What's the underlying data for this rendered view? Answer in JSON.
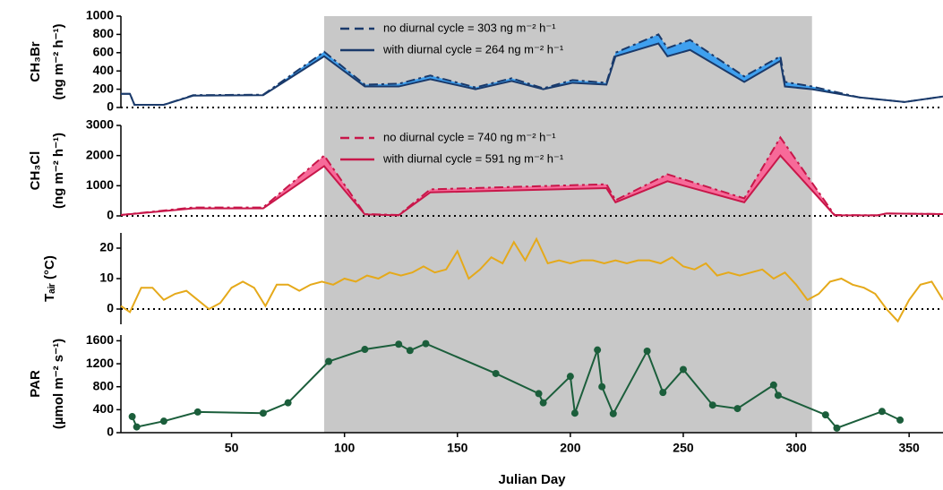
{
  "chart_data": [
    {
      "type": "line",
      "ylabel": [
        "CH₃Br",
        "(ng m⁻² h⁻¹)"
      ],
      "ylim": [
        0,
        1000
      ],
      "yticks": [
        0,
        200,
        400,
        600,
        800,
        1000
      ],
      "zero_line": true,
      "fill_between": true,
      "fill_color": "#3fa0ef",
      "legend": true,
      "x": [
        1,
        5,
        7,
        20,
        33,
        64,
        91,
        109,
        124,
        138,
        158,
        174,
        188,
        201,
        216,
        220,
        239,
        243,
        253,
        277,
        293,
        295,
        307,
        328,
        348,
        365
      ],
      "series": [
        {
          "name": "no diurnal cycle = 303 ng m⁻² h⁻¹",
          "color": "#1a3a6b",
          "dashed": true,
          "values": [
            150,
            150,
            30,
            30,
            135,
            140,
            610,
            250,
            260,
            350,
            220,
            320,
            210,
            300,
            270,
            600,
            800,
            650,
            740,
            340,
            560,
            280,
            230,
            110,
            60,
            120
          ]
        },
        {
          "name": "with diurnal cycle = 264 ng m⁻² h⁻¹",
          "color": "#1a3a6b",
          "dashed": false,
          "values": [
            150,
            150,
            30,
            30,
            130,
            135,
            560,
            230,
            230,
            310,
            200,
            290,
            200,
            270,
            250,
            560,
            700,
            560,
            630,
            280,
            510,
            230,
            200,
            110,
            60,
            120
          ]
        }
      ]
    },
    {
      "type": "line",
      "ylabel": [
        "CH₃Cl",
        "(ng m⁻² h⁻¹)"
      ],
      "ylim": [
        0,
        3000
      ],
      "yticks": [
        0,
        1000,
        2000,
        3000
      ],
      "zero_line": true,
      "fill_between": true,
      "fill_color": "#f76a99",
      "legend": true,
      "x": [
        1,
        33,
        64,
        91,
        109,
        124,
        138,
        216,
        220,
        243,
        277,
        293,
        317,
        336,
        340,
        365
      ],
      "series": [
        {
          "name": "no diurnal cycle = 740 ng m⁻² h⁻¹",
          "color": "#c8174a",
          "dashed": true,
          "values": [
            30,
            280,
            280,
            2000,
            60,
            30,
            880,
            1050,
            520,
            1380,
            580,
            2600,
            30,
            20,
            80,
            60
          ]
        },
        {
          "name": "with diurnal cycle = 591 ng m⁻² h⁻¹",
          "color": "#c8174a",
          "dashed": false,
          "values": [
            30,
            250,
            250,
            1650,
            50,
            20,
            780,
            920,
            450,
            1150,
            450,
            2000,
            20,
            20,
            80,
            60
          ]
        }
      ]
    },
    {
      "type": "line",
      "ylabel": [
        "Tₐᵢᵣ (°C)"
      ],
      "ylim": [
        -5,
        25
      ],
      "yticks": [
        0,
        10,
        20
      ],
      "zero_line": true,
      "x": [
        1,
        5,
        10,
        15,
        20,
        25,
        30,
        35,
        40,
        45,
        50,
        55,
        60,
        65,
        70,
        75,
        80,
        85,
        90,
        95,
        100,
        105,
        110,
        115,
        120,
        125,
        130,
        135,
        140,
        145,
        150,
        155,
        160,
        165,
        170,
        175,
        180,
        185,
        190,
        195,
        200,
        205,
        210,
        215,
        220,
        225,
        230,
        235,
        240,
        245,
        250,
        255,
        260,
        265,
        270,
        275,
        280,
        285,
        290,
        295,
        300,
        305,
        310,
        315,
        320,
        325,
        330,
        335,
        340,
        345,
        350,
        355,
        360,
        365
      ],
      "series": [
        {
          "color": "#e5a91a",
          "values": [
            1,
            -1,
            7,
            7,
            3,
            5,
            6,
            3,
            0,
            2,
            7,
            9,
            7,
            1,
            8,
            8,
            6,
            8,
            9,
            8,
            10,
            9,
            11,
            10,
            12,
            11,
            12,
            14,
            12,
            13,
            19,
            10,
            13,
            17,
            15,
            22,
            16,
            23,
            15,
            16,
            15,
            16,
            16,
            15,
            16,
            15,
            16,
            16,
            15,
            17,
            14,
            13,
            15,
            11,
            12,
            11,
            12,
            13,
            10,
            12,
            8,
            3,
            5,
            9,
            10,
            8,
            7,
            5,
            0,
            -4,
            3,
            8,
            9,
            3
          ]
        }
      ]
    },
    {
      "type": "line",
      "ylabel": [
        "PAR",
        "(µmol m⁻² s⁻¹)"
      ],
      "ylim": [
        0,
        1700
      ],
      "yticks": [
        0,
        400,
        800,
        1200,
        1600
      ],
      "markers": true,
      "xlabel": "Julian Day",
      "xlim": [
        1,
        365
      ],
      "xticks": [
        50,
        100,
        150,
        200,
        250,
        300,
        350
      ],
      "shaded_x": [
        91,
        307
      ],
      "x": [
        6,
        8,
        20,
        35,
        64,
        75,
        93,
        109,
        124,
        129,
        136,
        167,
        186,
        188,
        200,
        202,
        212,
        214,
        219,
        234,
        241,
        250,
        263,
        274,
        290,
        292,
        313,
        318,
        338,
        346
      ],
      "series": [
        {
          "color": "#1b5e3b",
          "values": [
            280,
            100,
            200,
            360,
            340,
            520,
            1240,
            1450,
            1540,
            1430,
            1550,
            1030,
            680,
            520,
            980,
            340,
            1440,
            800,
            330,
            1420,
            700,
            1100,
            480,
            420,
            830,
            650,
            310,
            80,
            370,
            220
          ]
        }
      ]
    }
  ]
}
